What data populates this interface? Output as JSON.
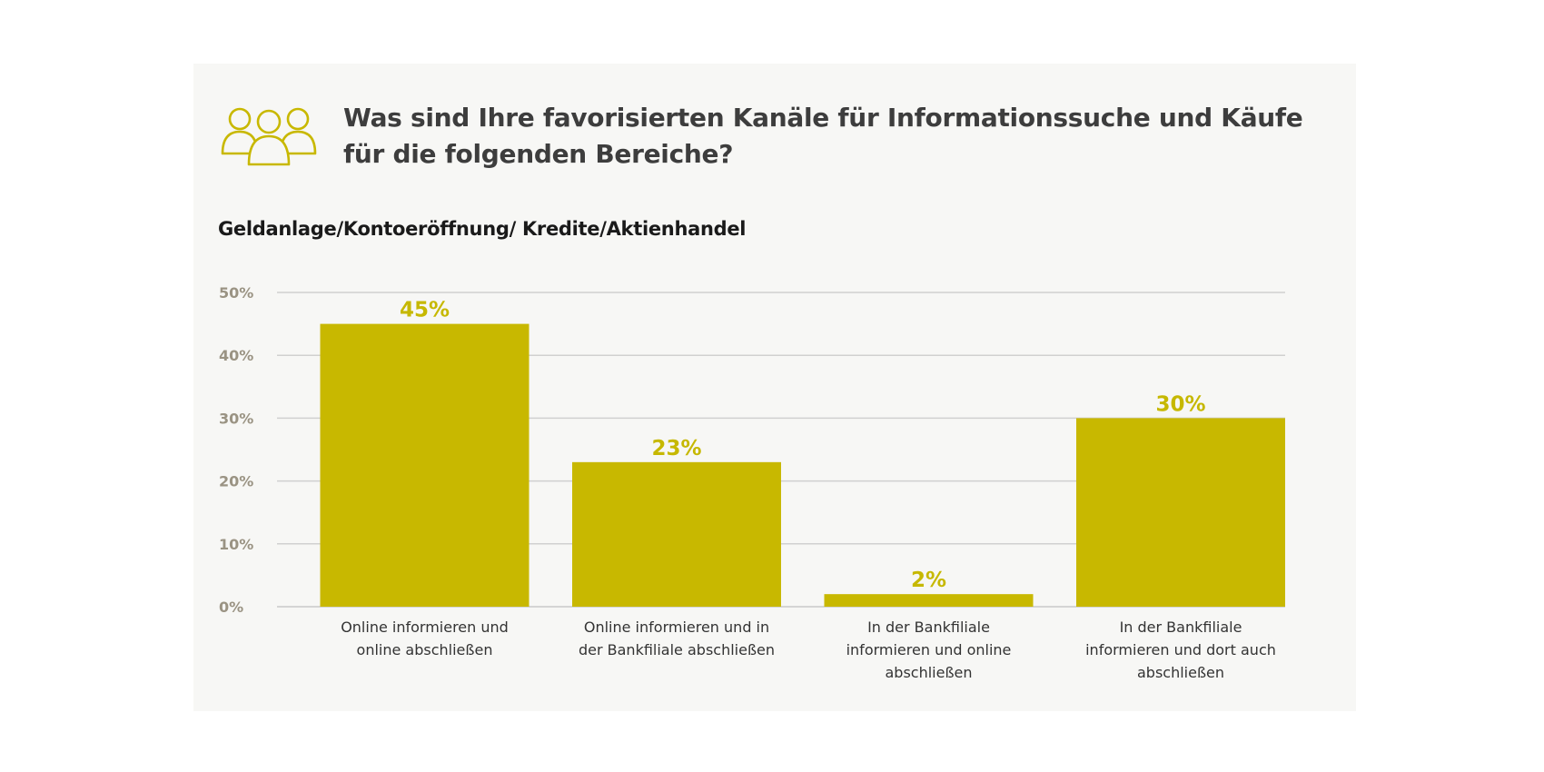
{
  "title": "Was sind Ihre favorisierten Kanäle für Informationssuche und Käufe für die folgenden Bereiche?",
  "icon": "people-group-icon",
  "colors": {
    "accent": "#c8b800",
    "background": "#f7f7f5",
    "grid": "#d0d0d0",
    "axis_text": "#9a9383"
  },
  "chart_data": {
    "type": "bar",
    "title": "Geldanlage/Kontoeröffnung/ Kredite/Aktienhandel",
    "categories": [
      [
        "Online informieren und",
        "online abschließen"
      ],
      [
        "Online informieren und in",
        "der Bankfiliale abschließen"
      ],
      [
        "In der Bankfiliale",
        "informieren und online",
        "abschließen"
      ],
      [
        "In der Bankfiliale",
        "informieren und dort auch",
        "abschließen"
      ]
    ],
    "values": [
      45,
      23,
      2,
      30
    ],
    "data_labels": [
      "45%",
      "23%",
      "2%",
      "30%"
    ],
    "yticks": [
      "0%",
      "10%",
      "20%",
      "30%",
      "40%",
      "50%"
    ],
    "ylim": [
      0,
      50
    ],
    "grid": true,
    "xlabel": "",
    "ylabel": ""
  }
}
